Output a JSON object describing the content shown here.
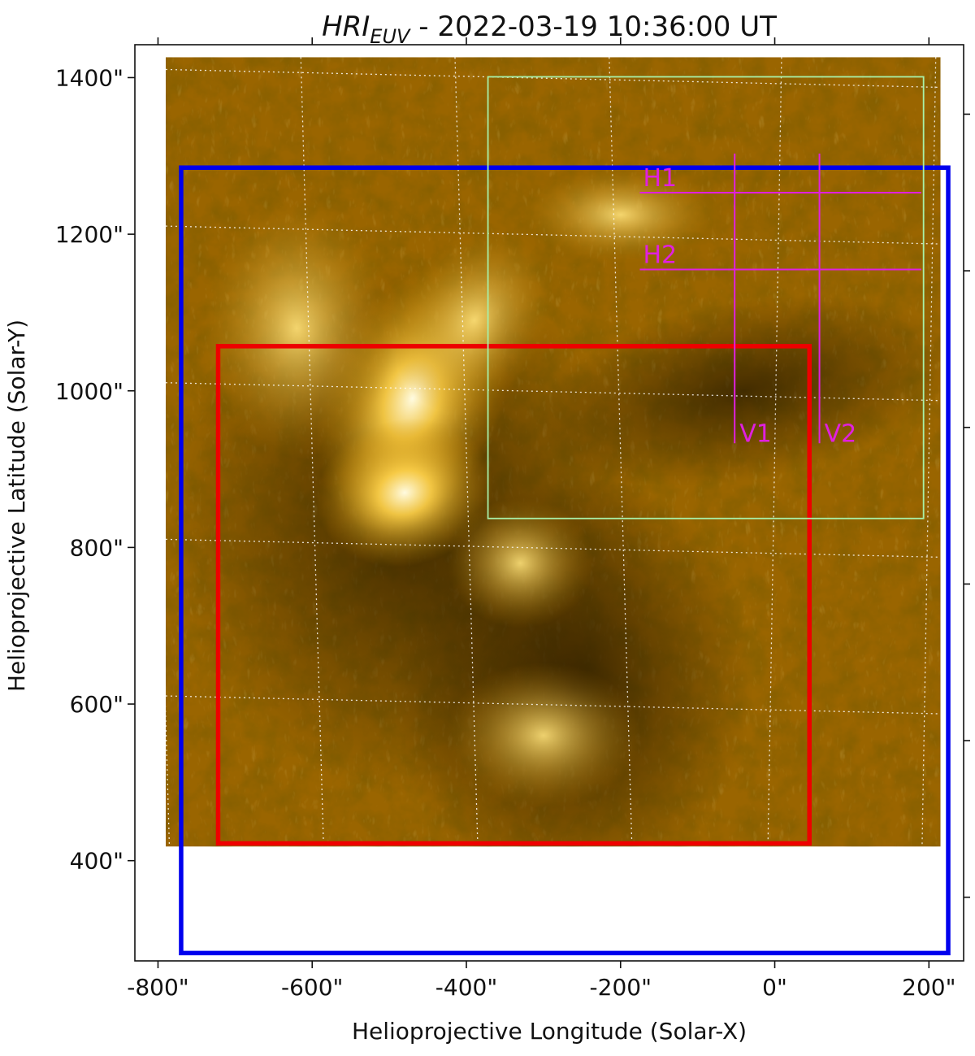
{
  "chart_data": {
    "type": "image",
    "title": {
      "instrument": "HRI",
      "instrument_sub": "EUV",
      "rest": " - 2022-03-19 10:36:00 UT"
    },
    "xlabel": "Helioprojective Longitude (Solar-X)",
    "ylabel": "Helioprojective Latitude (Solar-Y)",
    "x_ticks": [
      {
        "value": -800,
        "label": "-800\""
      },
      {
        "value": -600,
        "label": "-600\""
      },
      {
        "value": -400,
        "label": "-400\""
      },
      {
        "value": -200,
        "label": "-200\""
      },
      {
        "value": 0,
        "label": "0\""
      },
      {
        "value": 200,
        "label": "200\""
      }
    ],
    "y_ticks": [
      {
        "value": 400,
        "label": "400\""
      },
      {
        "value": 600,
        "label": "600\""
      },
      {
        "value": 800,
        "label": "800\""
      },
      {
        "value": 1000,
        "label": "1000\""
      },
      {
        "value": 1200,
        "label": "1200\""
      },
      {
        "value": 1400,
        "label": "1400\""
      }
    ],
    "xlim": [
      -830,
      245
    ],
    "ylim": [
      272,
      1442
    ],
    "image_extent": {
      "x": [
        -790,
        215
      ],
      "y": [
        418,
        1426
      ]
    },
    "colormap": "sdo-aia-171 gold",
    "grid": true,
    "boxes": [
      {
        "name": "blue-box",
        "color": "#0000ee",
        "x": [
          -770,
          225
        ],
        "y": [
          282,
          1285
        ]
      },
      {
        "name": "red-box",
        "color": "#ee0000",
        "x": [
          -722,
          45
        ],
        "y": [
          422,
          1057
        ]
      },
      {
        "name": "green-box",
        "color": "#a8f0a8",
        "x": [
          -372,
          193
        ],
        "y": [
          837,
          1401
        ]
      }
    ],
    "cuts": [
      {
        "label": "H1",
        "orientation": "horizontal",
        "value": 1253,
        "range": [
          -175,
          190
        ]
      },
      {
        "label": "H2",
        "orientation": "horizontal",
        "value": 1155,
        "range": [
          -175,
          190
        ]
      },
      {
        "label": "V1",
        "orientation": "vertical",
        "value": -52,
        "range": [
          933,
          1303
        ]
      },
      {
        "label": "V2",
        "orientation": "vertical",
        "value": 58,
        "range": [
          933,
          1303
        ]
      }
    ],
    "cut_color": "#e020e0"
  }
}
